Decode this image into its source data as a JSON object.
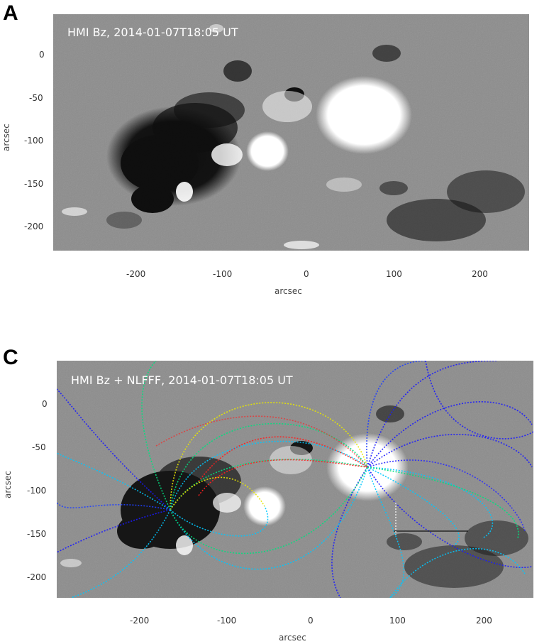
{
  "panels": [
    {
      "letter": "A",
      "title": "HMI Bz, 2014-01-07T18:05 UT",
      "xlabel": "arcsec",
      "ylabel": "arcsec",
      "xticks": [
        "-200",
        "-100",
        "0",
        "100",
        "200"
      ],
      "yticks": [
        "0",
        "-50",
        "-100",
        "-150",
        "-200"
      ]
    },
    {
      "letter": "C",
      "title": "HMI Bz + NLFFF, 2014-01-07T18:05 UT",
      "xlabel": "arcsec",
      "ylabel": "arcsec",
      "xticks": [
        "-200",
        "-100",
        "0",
        "100",
        "200"
      ],
      "yticks": [
        "0",
        "-50",
        "-100",
        "-150",
        "-200"
      ]
    }
  ],
  "colors": {
    "background_gray": "#8c8c8c",
    "positive_polarity": "#ffffff",
    "negative_polarity": "#000000",
    "field_lines": [
      "#1a1aff",
      "#00c8ff",
      "#00e080",
      "#e8e800",
      "#ff2020"
    ]
  }
}
